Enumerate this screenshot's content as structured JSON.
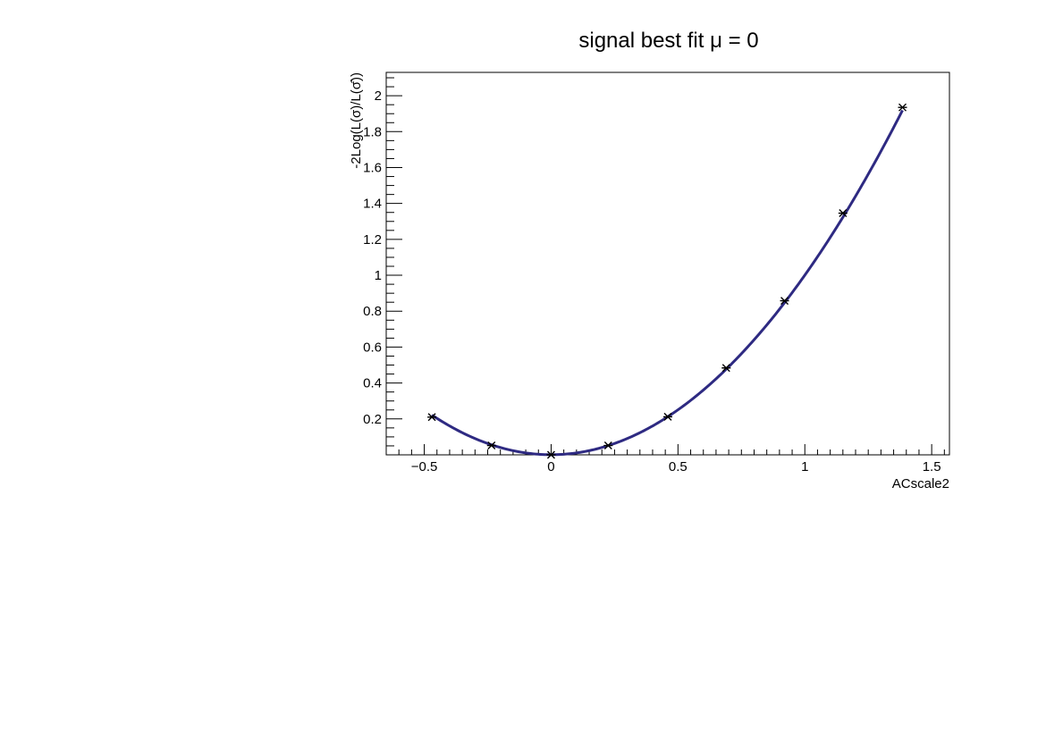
{
  "chart_data": {
    "type": "scatter",
    "title": "signal best fit μ = 0",
    "xlabel": "ACscale2",
    "ylabel": "-2Log(L(σ)/L(σ̂))",
    "xlim": [
      -0.65,
      1.57
    ],
    "ylim": [
      0.0,
      2.13
    ],
    "x_ticks": [
      -0.5,
      0,
      0.5,
      1,
      1.5
    ],
    "x_tick_labels": [
      "−0.5",
      "0",
      "0.5",
      "1",
      "1.5"
    ],
    "y_ticks": [
      0.2,
      0.4,
      0.6,
      0.8,
      1,
      1.2,
      1.4,
      1.6,
      1.8,
      2
    ],
    "y_tick_labels": [
      "0.2",
      "0.4",
      "0.6",
      "0.8",
      "1",
      "1.2",
      "1.4",
      "1.6",
      "1.8",
      "2"
    ],
    "grid": false,
    "series": [
      {
        "kind": "points",
        "marker": "asterisk",
        "color": "#000000",
        "x": [
          -0.47,
          -0.235,
          0.0,
          0.225,
          0.46,
          0.69,
          0.92,
          1.15,
          1.385
        ],
        "y": [
          0.21,
          0.052,
          0.0,
          0.052,
          0.212,
          0.484,
          0.858,
          1.346,
          1.935
        ]
      },
      {
        "kind": "fit-curve",
        "color": "#2e2a82",
        "coefficients": {
          "a": 1.0,
          "b": 0.0008
        },
        "x_range": [
          -0.47,
          1.385
        ]
      }
    ]
  }
}
